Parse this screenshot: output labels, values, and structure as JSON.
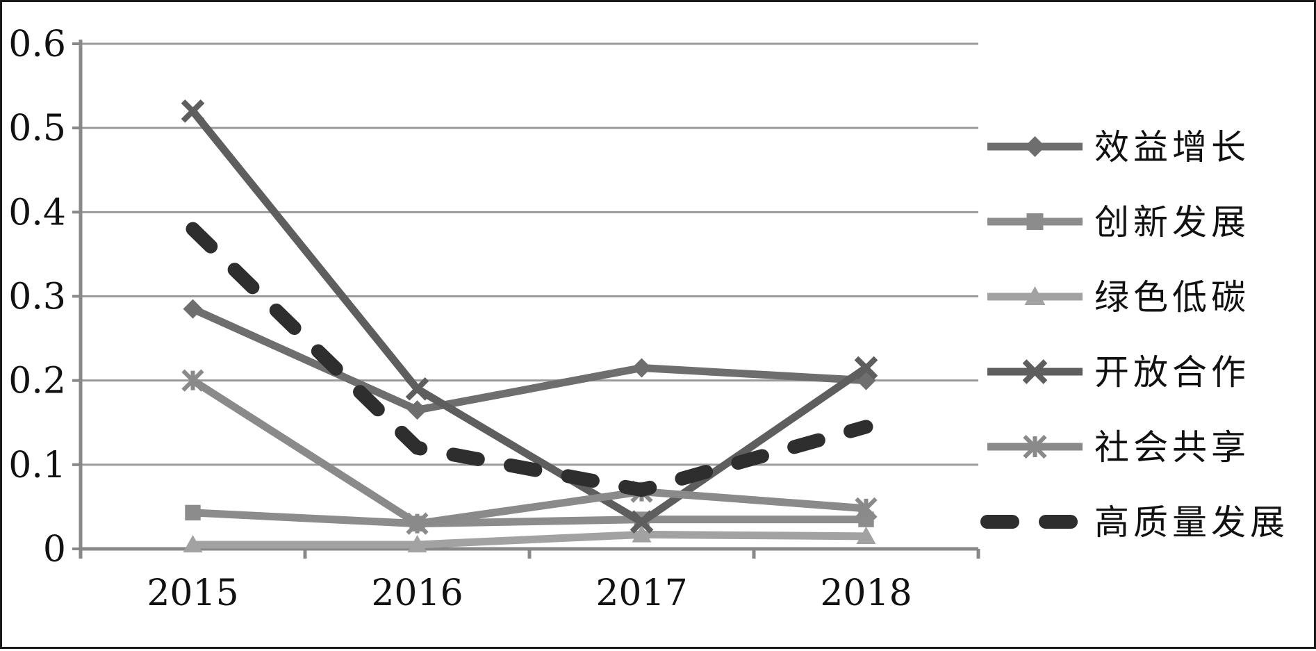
{
  "chart_data": {
    "type": "line",
    "title": "",
    "xlabel": "",
    "ylabel": "",
    "categories": [
      "2015",
      "2016",
      "2017",
      "2018"
    ],
    "ylim": [
      0,
      0.6
    ],
    "yticks": [
      0,
      0.1,
      0.2,
      0.3,
      0.4,
      0.5,
      0.6
    ],
    "ytick_labels": [
      "0",
      "0.1",
      "0.2",
      "0.3",
      "0.4",
      "0.5",
      "0.6"
    ],
    "grid": true,
    "legend_position": "right",
    "series": [
      {
        "name": "效益增长",
        "values": [
          0.285,
          0.165,
          0.215,
          0.2
        ],
        "marker": "diamond",
        "dashed": false,
        "color": "#6e6e6e"
      },
      {
        "name": "创新发展",
        "values": [
          0.043,
          0.03,
          0.035,
          0.035
        ],
        "marker": "square",
        "dashed": false,
        "color": "#8c8c8c"
      },
      {
        "name": "绿色低碳",
        "values": [
          0.005,
          0.005,
          0.017,
          0.015
        ],
        "marker": "triangle",
        "dashed": false,
        "color": "#a2a2a2"
      },
      {
        "name": "开放合作",
        "values": [
          0.52,
          0.19,
          0.032,
          0.215
        ],
        "marker": "x",
        "dashed": false,
        "color": "#5e5e5e"
      },
      {
        "name": "社会共享",
        "values": [
          0.2,
          0.03,
          0.068,
          0.048
        ],
        "marker": "star",
        "dashed": false,
        "color": "#8a8a8a"
      },
      {
        "name": "高质量发展",
        "values": [
          0.38,
          0.12,
          0.07,
          0.145
        ],
        "marker": "none",
        "dashed": true,
        "color": "#2e2e2e"
      }
    ]
  }
}
